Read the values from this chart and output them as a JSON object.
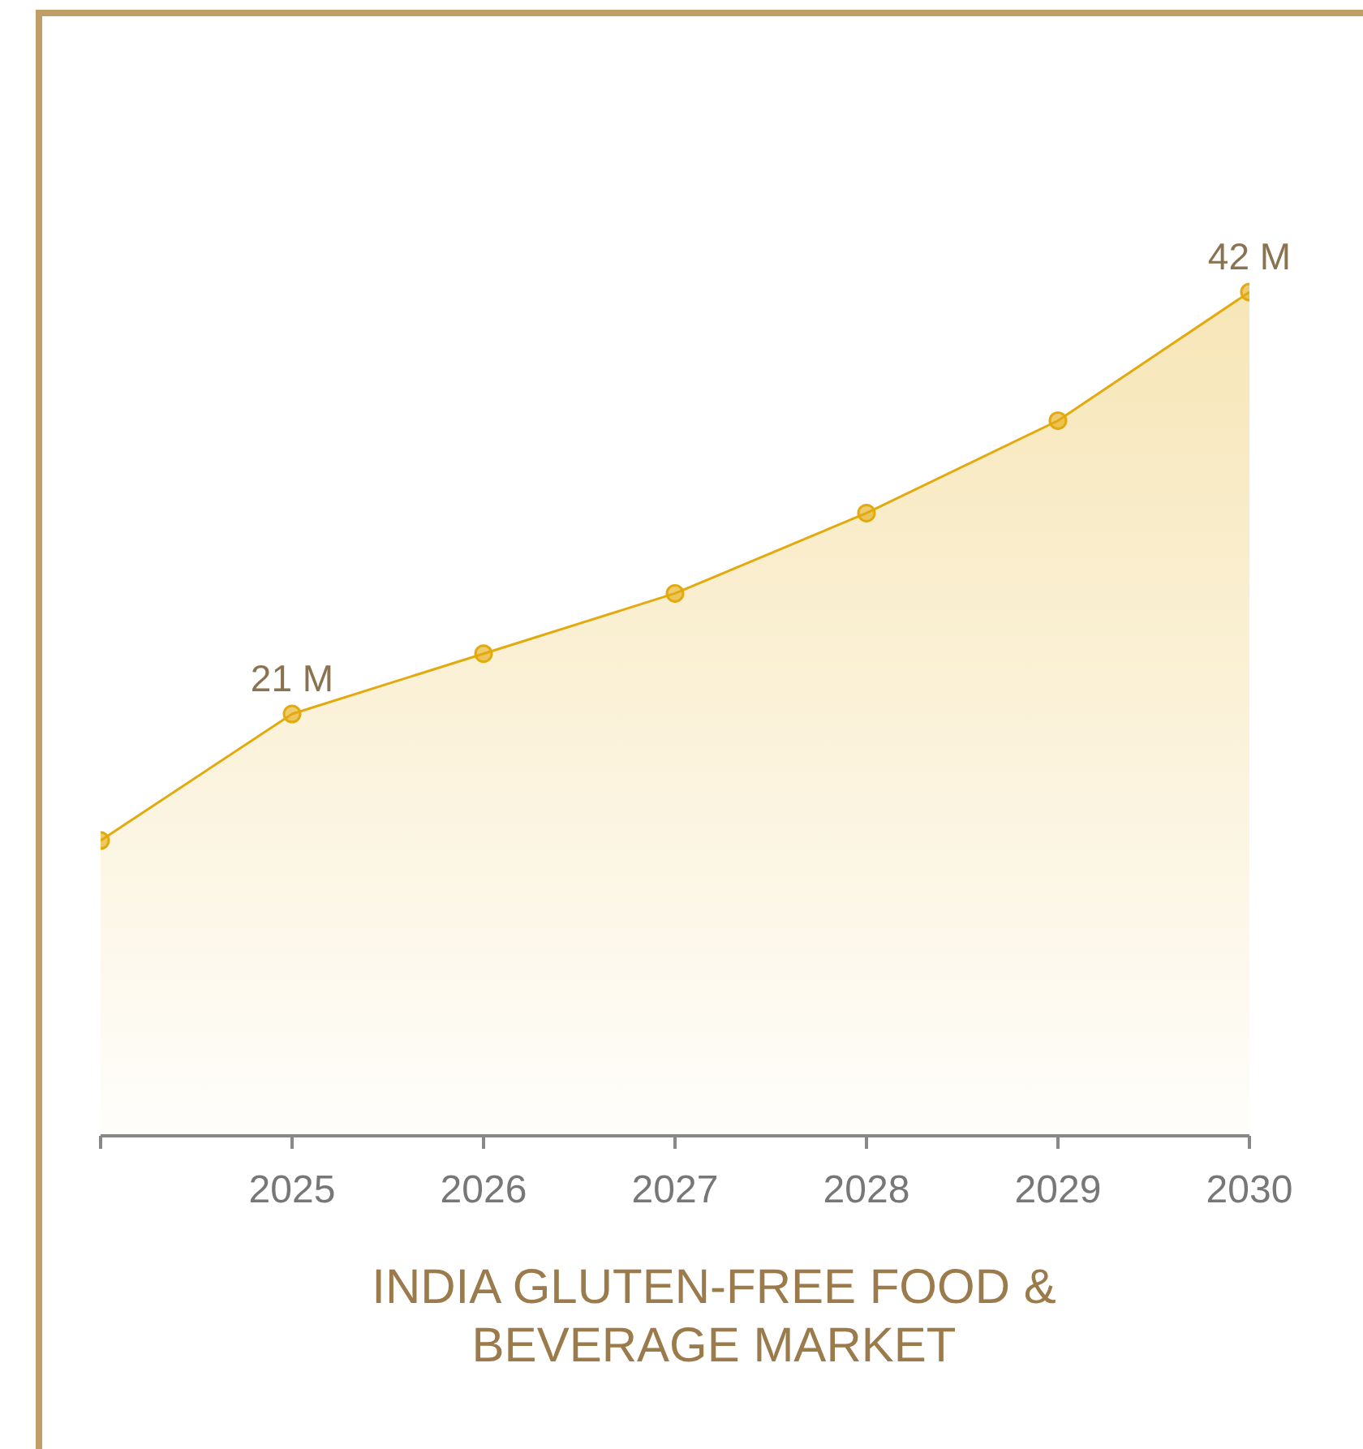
{
  "chart_data": {
    "type": "area",
    "title": "INDIA GLUTEN-FREE FOOD & BEVERAGE MARKET",
    "x": [
      2024,
      2025,
      2026,
      2027,
      2028,
      2029,
      2030
    ],
    "series": [
      {
        "color": "#e3aa0e",
        "values": [
          14.7,
          21,
          24,
          27,
          31,
          35.6,
          42
        ],
        "value_labels": [
          null,
          "21 M",
          null,
          null,
          null,
          null,
          "42 M"
        ]
      }
    ],
    "xlim": [
      2024,
      2030
    ],
    "xticks": [
      {
        "value": 2024,
        "label": null
      },
      2025,
      2026,
      2027,
      2028,
      2029,
      2030
    ],
    "marker": "circle",
    "tick_labels": "x"
  }
}
